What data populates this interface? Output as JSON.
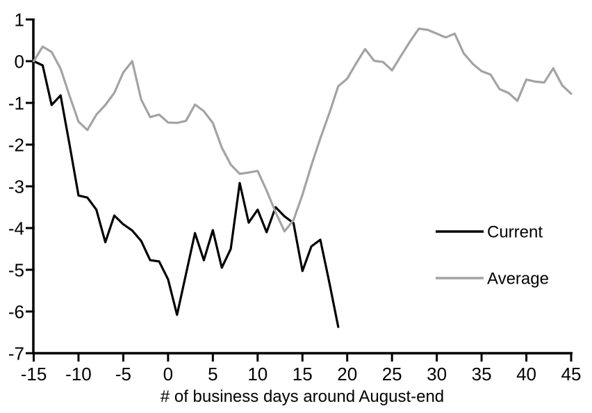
{
  "chart_data": {
    "type": "line",
    "title": "",
    "xlabel": "# of business days around August-end",
    "ylabel": "",
    "xlim": [
      -15,
      45
    ],
    "ylim": [
      -7,
      1
    ],
    "x_ticks": [
      -15,
      -10,
      -5,
      0,
      5,
      10,
      15,
      20,
      25,
      30,
      35,
      40,
      45
    ],
    "y_ticks": [
      1,
      0,
      -1,
      -2,
      -3,
      -4,
      -5,
      -6,
      -7
    ],
    "grid": "off",
    "legend_position": "right-middle",
    "series": [
      {
        "name": "Current",
        "color": "#000000",
        "x": [
          -15,
          -14,
          -13,
          -12,
          -11,
          -10,
          -9,
          -8,
          -7,
          -6,
          -5,
          -4,
          -3,
          -2,
          -1,
          0,
          1,
          2,
          3,
          4,
          5,
          6,
          7,
          8,
          9,
          10,
          11,
          12,
          13,
          14,
          15,
          16,
          17,
          18,
          19
        ],
        "values": [
          0.0,
          -0.1,
          -1.05,
          -0.82,
          -2.0,
          -3.22,
          -3.27,
          -3.56,
          -4.34,
          -3.7,
          -3.91,
          -4.06,
          -4.31,
          -4.77,
          -4.8,
          -5.23,
          -6.08,
          -5.1,
          -4.12,
          -4.77,
          -4.05,
          -4.95,
          -4.5,
          -2.92,
          -3.87,
          -3.56,
          -4.1,
          -3.5,
          -3.72,
          -3.88,
          -5.03,
          -4.44,
          -4.28,
          -5.3,
          -6.37
        ]
      },
      {
        "name": "Average",
        "color": "#a3a3a3",
        "x": [
          -15,
          -14,
          -13,
          -12,
          -11,
          -10,
          -9,
          -8,
          -7,
          -6,
          -5,
          -4,
          -3,
          -2,
          -1,
          0,
          1,
          2,
          3,
          4,
          5,
          6,
          7,
          8,
          9,
          10,
          11,
          12,
          13,
          14,
          15,
          16,
          17,
          18,
          19,
          20,
          21,
          22,
          23,
          24,
          25,
          26,
          27,
          28,
          29,
          30,
          31,
          32,
          33,
          34,
          35,
          36,
          37,
          38,
          39,
          40,
          41,
          42,
          43,
          44,
          45
        ],
        "values": [
          0.0,
          0.35,
          0.22,
          -0.18,
          -0.83,
          -1.45,
          -1.65,
          -1.28,
          -1.05,
          -0.76,
          -0.27,
          0.0,
          -0.92,
          -1.34,
          -1.28,
          -1.47,
          -1.48,
          -1.43,
          -1.04,
          -1.2,
          -1.48,
          -2.07,
          -2.48,
          -2.7,
          -2.67,
          -2.63,
          -3.1,
          -3.62,
          -4.08,
          -3.81,
          -3.2,
          -2.5,
          -1.85,
          -1.25,
          -0.6,
          -0.42,
          -0.05,
          0.29,
          0.01,
          -0.02,
          -0.22,
          0.13,
          0.47,
          0.78,
          0.75,
          0.66,
          0.57,
          0.66,
          0.19,
          -0.06,
          -0.24,
          -0.32,
          -0.67,
          -0.76,
          -0.95,
          -0.44,
          -0.49,
          -0.51,
          -0.17,
          -0.58,
          -0.78
        ]
      }
    ]
  },
  "legend": {
    "current_label": "Current",
    "average_label": "Average"
  }
}
